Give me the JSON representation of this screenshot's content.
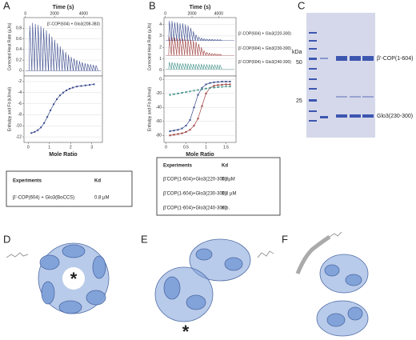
{
  "panels": [
    "A",
    "B",
    "C",
    "D",
    "E",
    "F"
  ],
  "chart_data": [
    {
      "type": "thermogram",
      "x_label": "Time (s)",
      "y_label": "Corrected Heat Rate (µJ/s)",
      "xaxis_position": "top",
      "legend": "inside",
      "grid": true,
      "xlim": [
        -100,
        5300
      ],
      "xticks": [
        0,
        2000,
        4000
      ],
      "ylim": [
        -0.1,
        1.0
      ],
      "yticks": [
        0,
        0.2,
        0.4,
        0.6,
        0.8
      ],
      "x": [
        300,
        490,
        680,
        870,
        1060,
        1250,
        1440,
        1630,
        1820,
        2010,
        2200,
        2390,
        2580,
        2770,
        2960,
        3150,
        3340,
        3530,
        3720,
        3910,
        4100,
        4290,
        4480,
        4670,
        4860
      ],
      "series": [
        {
          "name": "β'-COP(604) + Glo3(208-383)",
          "color": "#3a4a8c",
          "baseline": 0,
          "values": [
            0.85,
            0.9,
            0.88,
            0.86,
            0.84,
            0.8,
            0.76,
            0.7,
            0.64,
            0.58,
            0.52,
            0.46,
            0.4,
            0.35,
            0.3,
            0.26,
            0.23,
            0.2,
            0.18,
            0.16,
            0.14,
            0.13,
            0.12,
            0.11,
            0.1
          ]
        }
      ]
    },
    {
      "type": "binding",
      "x_label": "Mole Ratio",
      "y_label": "Enthalpy and Fit (kJ/mol)",
      "xaxis_position": "bottom",
      "grid": true,
      "xlim": [
        -0.2,
        3.5
      ],
      "xticks": [
        0,
        1,
        2,
        3
      ],
      "ylim": [
        -13,
        -1
      ],
      "yticks": [
        -12,
        -10,
        -8,
        -6,
        -4,
        -2
      ],
      "x": [
        0.15,
        0.3,
        0.45,
        0.6,
        0.75,
        0.9,
        1.05,
        1.2,
        1.35,
        1.5,
        1.65,
        1.8,
        1.95,
        2.1,
        2.3,
        2.5,
        2.7,
        2.9,
        3.1
      ],
      "series": [
        {
          "color": "#3a4a8c",
          "style": "solid",
          "values": [
            -11.3,
            -11.1,
            -10.8,
            -10.3,
            -9.5,
            -8.4,
            -7.2,
            -6.1,
            -5.2,
            -4.5,
            -4.0,
            -3.6,
            -3.3,
            -3.1,
            -2.9,
            -2.8,
            -2.7,
            -2.6,
            -2.5
          ]
        }
      ]
    },
    {
      "type": "thermogram",
      "x_label": "Time (s)",
      "y_label": "Corrected Heat Rate (µJ/s)",
      "xaxis_position": "top",
      "legend": "right",
      "grid": true,
      "xlim": [
        -100,
        5300
      ],
      "xticks": [
        0,
        2000,
        4000
      ],
      "ylim": [
        -0.5,
        4.6
      ],
      "yticks": [
        0,
        1,
        2,
        3,
        4
      ],
      "x": [
        300,
        500,
        700,
        900,
        1100,
        1300,
        1500,
        1700,
        1900,
        2100,
        2300,
        2500,
        2700,
        2900,
        3100,
        3300,
        3500,
        3700,
        3900,
        4100
      ],
      "series": [
        {
          "name": "β'-COP(604) + Glo3(220-300)",
          "color": "#3a4a8c",
          "baseline": 2.6,
          "values": [
            4.3,
            4.3,
            4.2,
            4.2,
            4.1,
            4.1,
            4.0,
            3.9,
            3.7,
            3.4,
            3.1,
            2.9,
            2.8,
            2.75,
            2.72,
            2.7,
            2.7,
            2.68,
            2.68,
            2.67
          ]
        },
        {
          "name": "β'-COP(604) + Glo3(230-300)",
          "color": "#9c3b3b",
          "baseline": 1.3,
          "values": [
            2.9,
            2.9,
            2.85,
            2.8,
            2.8,
            2.75,
            2.7,
            2.7,
            2.65,
            2.6,
            2.5,
            2.3,
            2.0,
            1.7,
            1.55,
            1.5,
            1.45,
            1.45,
            1.42,
            1.4
          ]
        },
        {
          "name": "β'-COP(604) + Glo3(240-300)",
          "color": "#3d8f86",
          "baseline": 0.1,
          "values": [
            0.7,
            0.7,
            0.65,
            0.65,
            0.6,
            0.6,
            0.6,
            0.58,
            0.56,
            0.55,
            0.54,
            0.53,
            0.52,
            0.5,
            0.5,
            0.48,
            0.48,
            0.47,
            0.46,
            0.45
          ]
        }
      ]
    },
    {
      "type": "binding",
      "x_label": "Mole Ratio",
      "y_label": "Enthalpy and Fit (kJ/mol)",
      "xaxis_position": "bottom",
      "grid": true,
      "xlim": [
        -0.05,
        1.75
      ],
      "xticks": [
        0,
        0.5,
        1,
        1.5
      ],
      "ylim": [
        -90,
        5
      ],
      "yticks": [
        0,
        -20,
        -40,
        -60,
        -80
      ],
      "x": [
        0.1,
        0.2,
        0.3,
        0.4,
        0.5,
        0.6,
        0.7,
        0.8,
        0.9,
        1.0,
        1.1,
        1.2,
        1.3,
        1.4,
        1.5,
        1.6
      ],
      "series": [
        {
          "color": "#3a4a8c",
          "style": "solid",
          "values": [
            -74,
            -73,
            -72,
            -70,
            -66,
            -58,
            -40,
            -22,
            -12,
            -7,
            -5,
            -4,
            -3.5,
            -3,
            -3,
            -3
          ]
        },
        {
          "color": "#9c3b3b",
          "style": "solid",
          "values": [
            -80,
            -79,
            -78,
            -77,
            -75,
            -72,
            -66,
            -56,
            -38,
            -20,
            -12,
            -9,
            -8,
            -7.5,
            -7,
            -7
          ]
        },
        {
          "color": "#3d8f86",
          "style": "dashed",
          "values": [
            -22,
            -21,
            -20,
            -19,
            -18,
            -17,
            -16,
            -15,
            -14,
            -13,
            -12,
            -11.5,
            -11,
            -10.5,
            -10,
            -10
          ]
        }
      ]
    }
  ],
  "tables": [
    {
      "header": [
        "Experiments",
        "Kd"
      ],
      "rows": [
        [
          "β'-COP(604) + Glo3(BoCCS)",
          "0.8 µM"
        ]
      ]
    },
    {
      "header": [
        "Experiments",
        "Kd"
      ],
      "rows": [
        [
          "β'COP(1-604)+Glo3(220-300)",
          "0.8µM"
        ],
        [
          "β'COP(1-604)+Glo3(230-300)",
          "0.8 µM"
        ],
        [
          "β'COP(1-604)+Glo3(240-300)",
          "n.b."
        ]
      ]
    }
  ],
  "gel": {
    "unit": "kDa",
    "markers": [
      "50",
      "25"
    ],
    "bands": [
      "β'-COP(1-604)",
      "Glo3(230-300)"
    ]
  },
  "asterisks": [
    "*",
    "*"
  ]
}
